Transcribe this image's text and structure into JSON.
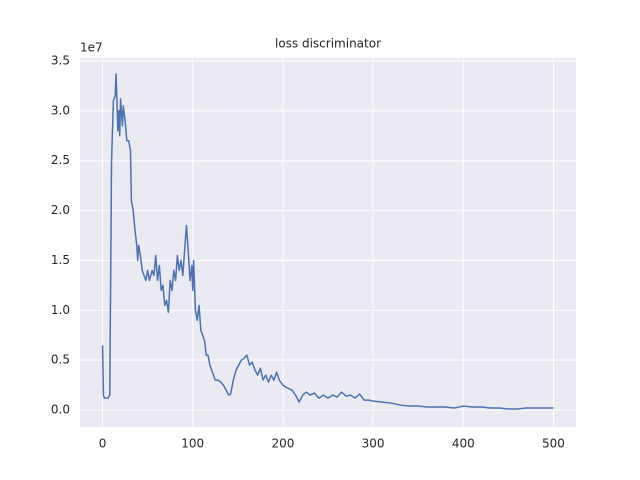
{
  "chart_data": {
    "type": "line",
    "title": "loss discriminator",
    "y_offset_label": "1e7",
    "color": "#4c72b0",
    "grid": true,
    "xlim": [
      -25,
      525
    ],
    "ylim": [
      -0.17,
      3.53
    ],
    "xticks": [
      0,
      100,
      200,
      300,
      400,
      500
    ],
    "yticks": [
      {
        "value": 0,
        "label": "0.0"
      },
      0.5,
      {
        "value": 1,
        "label": "1.0"
      },
      1.5,
      {
        "value": 2,
        "label": "2.0"
      },
      2.5,
      {
        "value": 3,
        "label": "3.0"
      },
      3.5
    ],
    "x": [
      0,
      1,
      2,
      4,
      6,
      8,
      10,
      12,
      14,
      15,
      17,
      18,
      19,
      20,
      22,
      23,
      25,
      27,
      29,
      31,
      32,
      34,
      36,
      38,
      39,
      40,
      42,
      44,
      46,
      48,
      50,
      52,
      55,
      57,
      59,
      61,
      63,
      65,
      67,
      69,
      71,
      73,
      75,
      77,
      79,
      81,
      83,
      85,
      87,
      89,
      91,
      93,
      95,
      97,
      99,
      100,
      101,
      103,
      105,
      107,
      109,
      111,
      113,
      115,
      117,
      119,
      121,
      123,
      125,
      128,
      131,
      134,
      137,
      140,
      142,
      145,
      148,
      151,
      154,
      157,
      160,
      163,
      166,
      169,
      172,
      175,
      178,
      181,
      184,
      187,
      190,
      193,
      196,
      200,
      205,
      210,
      214,
      218,
      222,
      226,
      230,
      235,
      240,
      245,
      250,
      255,
      260,
      265,
      270,
      275,
      280,
      285,
      290,
      295,
      300,
      310,
      320,
      330,
      340,
      350,
      360,
      370,
      380,
      390,
      400,
      410,
      420,
      430,
      440,
      450,
      460,
      470,
      480,
      490,
      500
    ],
    "values": [
      0.65,
      0.15,
      0.12,
      0.12,
      0.12,
      0.15,
      2.5,
      3.1,
      3.15,
      3.37,
      2.8,
      3.0,
      2.75,
      3.12,
      2.85,
      3.05,
      2.9,
      2.7,
      2.7,
      2.6,
      2.1,
      2.0,
      1.8,
      1.65,
      1.5,
      1.65,
      1.55,
      1.4,
      1.35,
      1.3,
      1.4,
      1.3,
      1.4,
      1.35,
      1.55,
      1.3,
      1.45,
      1.2,
      1.25,
      1.05,
      1.1,
      0.98,
      1.3,
      1.2,
      1.4,
      1.3,
      1.55,
      1.4,
      1.5,
      1.35,
      1.6,
      1.85,
      1.6,
      1.3,
      1.45,
      1.2,
      1.5,
      1.0,
      0.9,
      1.05,
      0.8,
      0.75,
      0.7,
      0.55,
      0.55,
      0.45,
      0.4,
      0.35,
      0.3,
      0.3,
      0.28,
      0.25,
      0.2,
      0.15,
      0.16,
      0.3,
      0.4,
      0.45,
      0.5,
      0.52,
      0.55,
      0.45,
      0.48,
      0.4,
      0.35,
      0.42,
      0.3,
      0.35,
      0.28,
      0.35,
      0.3,
      0.38,
      0.3,
      0.25,
      0.22,
      0.2,
      0.15,
      0.08,
      0.15,
      0.18,
      0.15,
      0.17,
      0.12,
      0.15,
      0.12,
      0.15,
      0.13,
      0.18,
      0.14,
      0.15,
      0.12,
      0.16,
      0.1,
      0.1,
      0.09,
      0.08,
      0.07,
      0.05,
      0.04,
      0.04,
      0.03,
      0.03,
      0.03,
      0.02,
      0.04,
      0.03,
      0.03,
      0.02,
      0.02,
      0.01,
      0.01,
      0.02,
      0.02,
      0.02,
      0.02
    ]
  }
}
